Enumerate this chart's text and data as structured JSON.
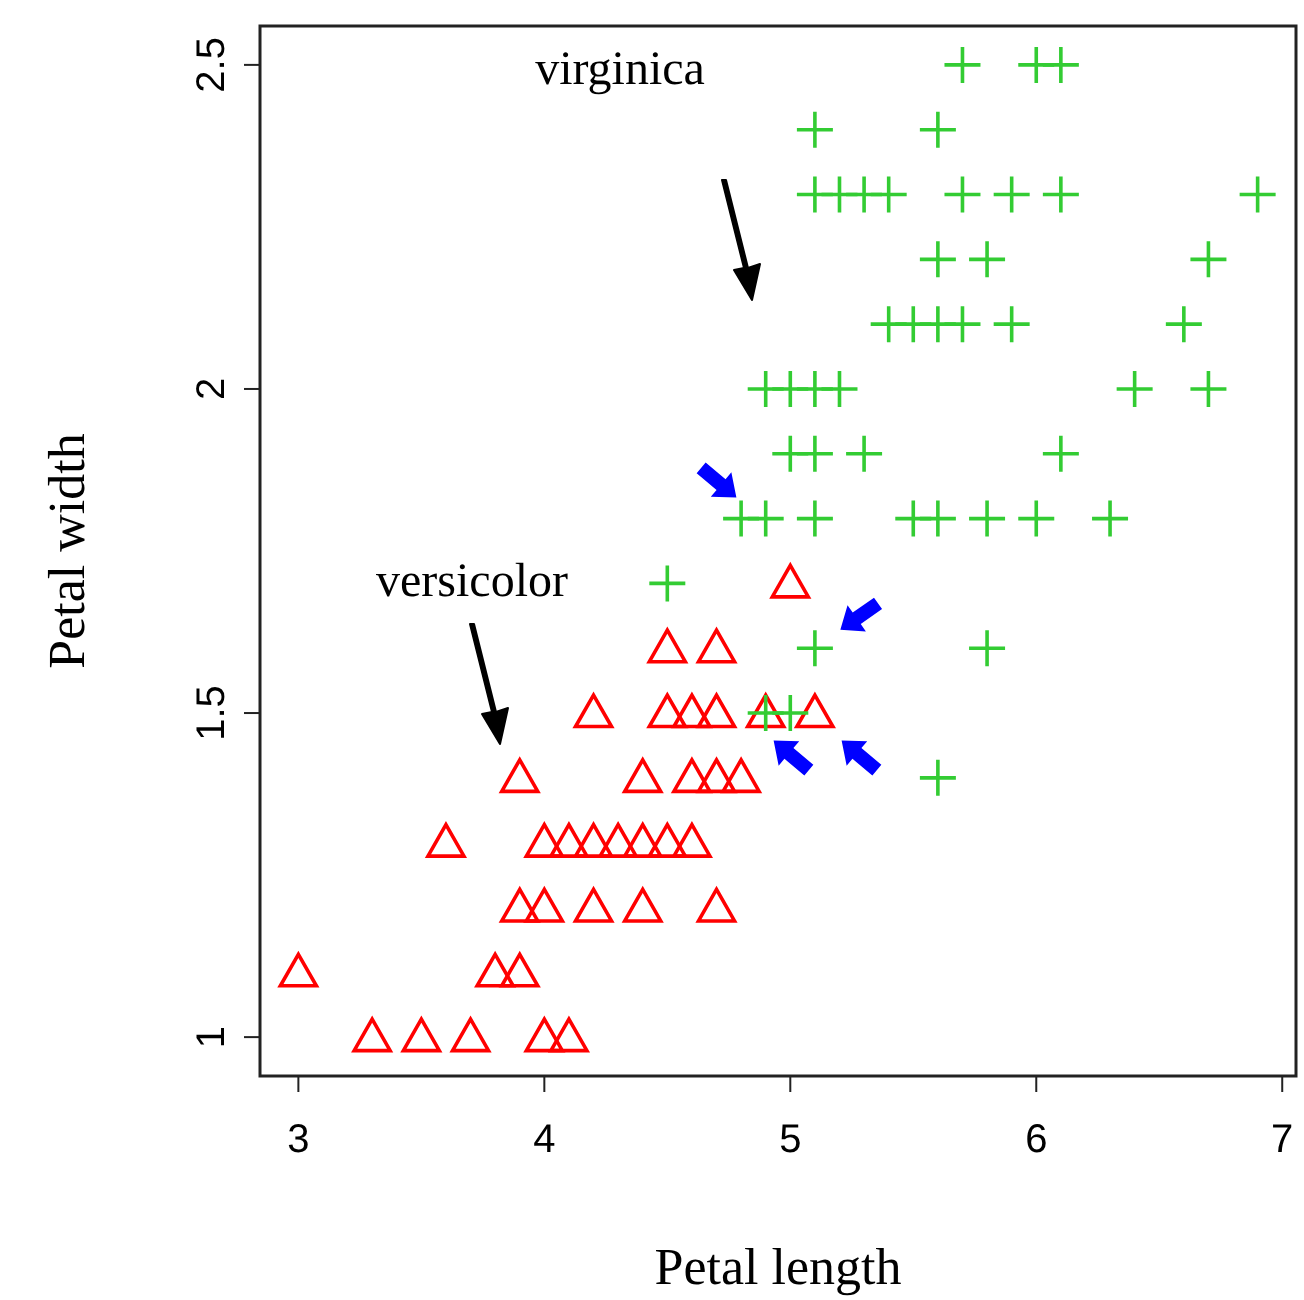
{
  "chart_data": {
    "type": "scatter",
    "xlabel": "Petal length",
    "ylabel": "Petal width",
    "xlim": [
      2.844,
      7.056
    ],
    "ylim": [
      0.94,
      2.56
    ],
    "xticks": [
      3,
      4,
      5,
      6,
      7
    ],
    "yticks": [
      1.0,
      1.5,
      2.0,
      2.5
    ],
    "grid": false,
    "series": [
      {
        "color": "#ff0000",
        "marker": "triangle",
        "x": [
          5.0,
          4.5,
          4.7,
          4.2,
          4.5,
          4.6,
          4.7,
          4.9,
          5.1,
          3.9,
          4.4,
          4.6,
          4.7,
          4.8,
          3.6,
          4.0,
          4.1,
          4.2,
          4.3,
          4.4,
          4.5,
          4.6,
          3.9,
          4.0,
          4.2,
          4.4,
          4.7,
          3.0,
          3.8,
          3.9,
          3.3,
          3.5,
          3.7,
          4.0,
          4.1
        ],
        "values": [
          1.7,
          1.6,
          1.6,
          1.5,
          1.5,
          1.5,
          1.5,
          1.5,
          1.5,
          1.4,
          1.4,
          1.4,
          1.4,
          1.4,
          1.3,
          1.3,
          1.3,
          1.3,
          1.3,
          1.3,
          1.3,
          1.3,
          1.2,
          1.2,
          1.2,
          1.2,
          1.2,
          1.1,
          1.1,
          1.1,
          1.0,
          1.0,
          1.0,
          1.0,
          1.0
        ]
      },
      {
        "color": "#33cc33",
        "marker": "cross",
        "x": [
          5.7,
          6.0,
          6.1,
          5.1,
          5.6,
          5.1,
          5.2,
          5.3,
          5.4,
          5.7,
          5.9,
          6.1,
          6.9,
          5.6,
          5.8,
          6.7,
          5.4,
          5.5,
          5.6,
          5.7,
          5.9,
          6.6,
          4.9,
          5.0,
          5.1,
          5.2,
          6.4,
          6.7,
          5.0,
          5.1,
          5.3,
          6.1,
          4.8,
          4.9,
          5.1,
          5.5,
          5.6,
          5.8,
          6.0,
          6.3,
          4.5,
          5.1,
          5.8,
          4.9,
          5.0,
          5.6
        ],
        "values": [
          2.5,
          2.5,
          2.5,
          2.4,
          2.4,
          2.3,
          2.3,
          2.3,
          2.3,
          2.3,
          2.3,
          2.3,
          2.3,
          2.2,
          2.2,
          2.2,
          2.1,
          2.1,
          2.1,
          2.1,
          2.1,
          2.1,
          2.0,
          2.0,
          2.0,
          2.0,
          2.0,
          2.0,
          1.9,
          1.9,
          1.9,
          1.9,
          1.8,
          1.8,
          1.8,
          1.8,
          1.8,
          1.8,
          1.8,
          1.8,
          1.7,
          1.6,
          1.6,
          1.5,
          1.5,
          1.4
        ]
      }
    ],
    "annotations": [
      "versicolor",
      "virginica"
    ]
  }
}
